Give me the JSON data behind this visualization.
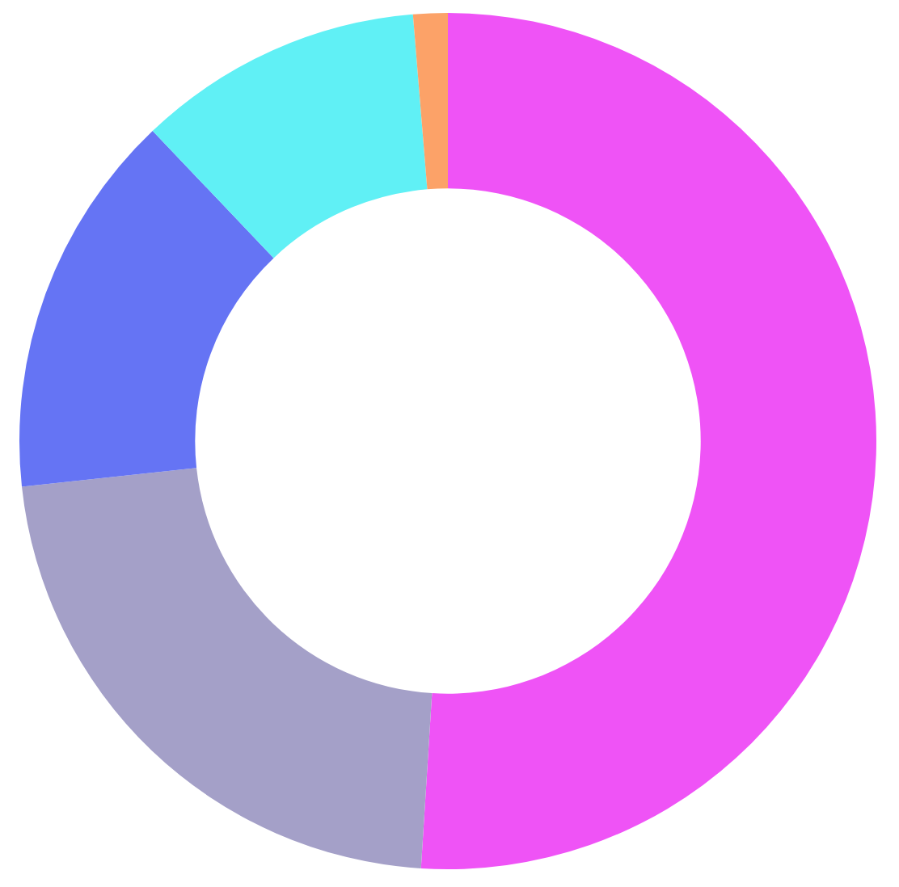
{
  "chart_data": {
    "type": "donut",
    "categories": [
      null,
      null,
      null,
      null,
      null
    ],
    "values": [
      51.0,
      22.3,
      14.6,
      10.8,
      1.3
    ],
    "colors": [
      "#ef53f6",
      "#a4a0c8",
      "#6574f4",
      "#60f0f5",
      "#fca268"
    ]
  }
}
